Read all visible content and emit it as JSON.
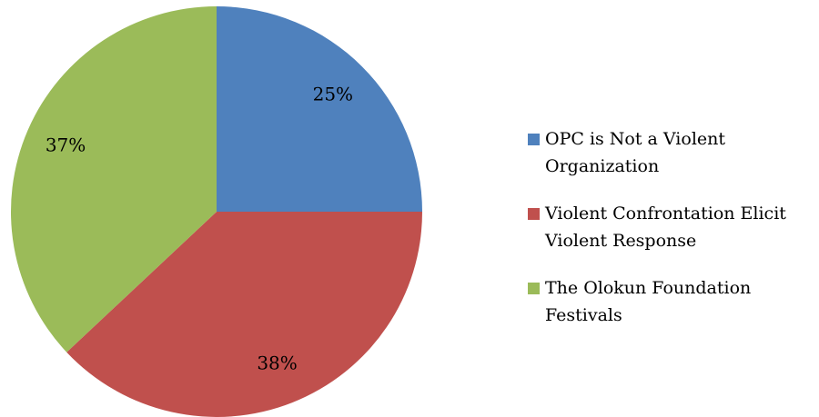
{
  "chart_data": {
    "type": "pie",
    "categories": [
      "OPC is Not a Violent Organization",
      "Violent Confrontation Elicit Violent Response",
      "The Olokun Foundation Festivals"
    ],
    "values": [
      25,
      38,
      37
    ],
    "value_labels": [
      "25%",
      "38%",
      "37%"
    ],
    "colors": [
      "#4f81bd",
      "#c0504d",
      "#9bbb59"
    ],
    "legend": "right"
  }
}
